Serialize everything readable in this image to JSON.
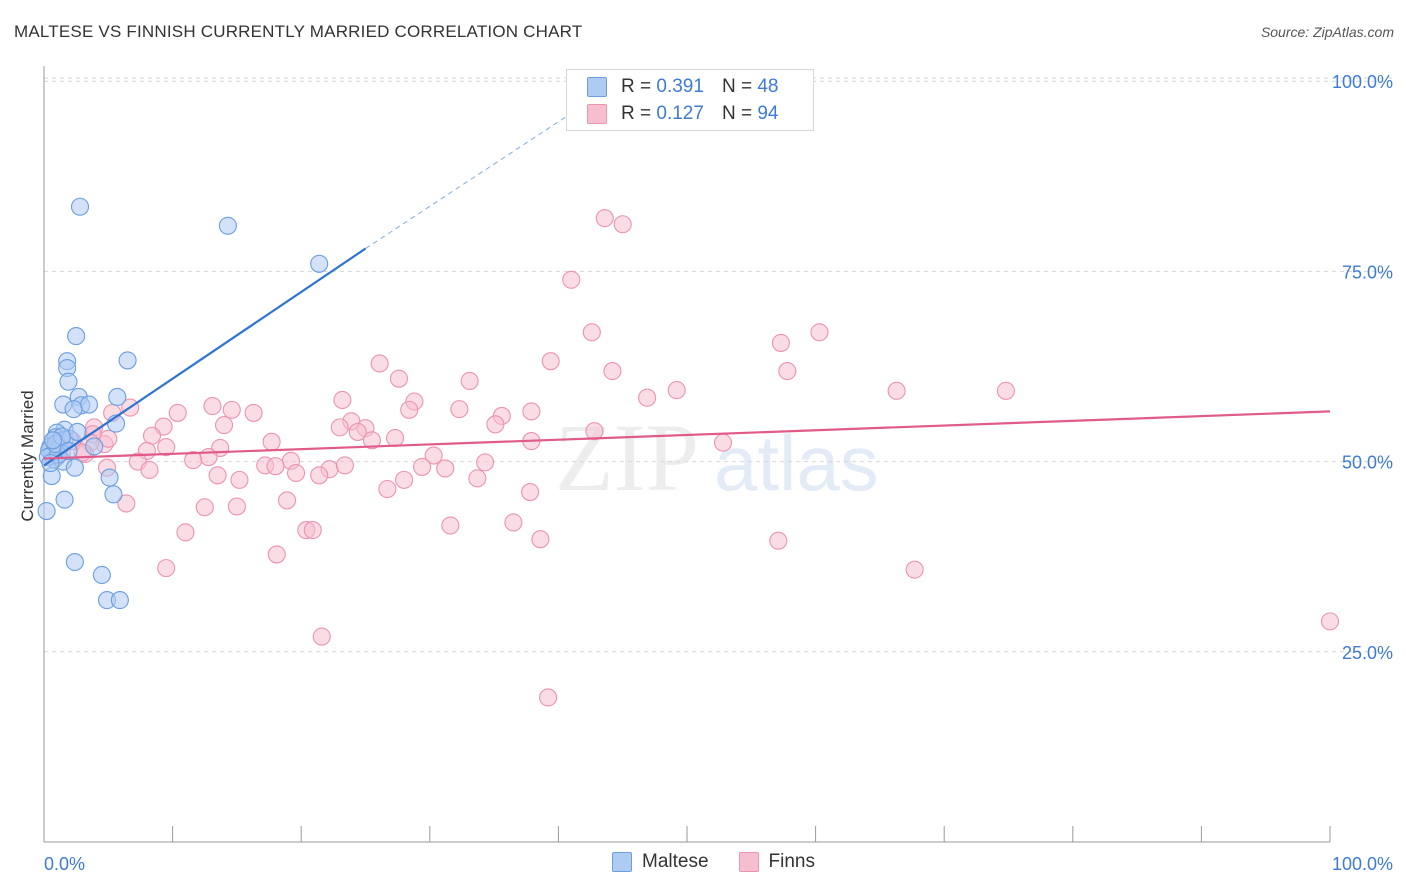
{
  "title": "MALTESE VS FINNISH CURRENTLY MARRIED CORRELATION CHART",
  "source": "Source: ZipAtlas.com",
  "watermark": {
    "zip": "ZIP",
    "atlas": "atlas"
  },
  "colors": {
    "maltese_fill": "#aecbf2",
    "maltese_stroke": "#6b9ee0",
    "maltese_line": "#2f74d0",
    "finns_fill": "#f6bfd0",
    "finns_stroke": "#ec93b0",
    "finns_line": "#e05a8a",
    "grid": "#d6d6d6",
    "axis_label": "#3d7bd6"
  },
  "legend_top": {
    "rows": [
      {
        "series": "maltese",
        "r_label": "R =",
        "r_value": "0.391",
        "n_label": "N =",
        "n_value": "48"
      },
      {
        "series": "finns",
        "r_label": "R =",
        "r_value": "0.127",
        "n_label": "N =",
        "n_value": "94"
      }
    ]
  },
  "legend_bottom": {
    "items": [
      "Maltese",
      "Finns"
    ]
  },
  "chart_data": {
    "type": "scatter",
    "title": "MALTESE VS FINNISH CURRENTLY MARRIED CORRELATION CHART",
    "xlabel": "",
    "ylabel": "Currently Married",
    "xlim": [
      0,
      100
    ],
    "ylim": [
      0,
      102
    ],
    "x_tick_labels": [
      "0.0%",
      "100.0%"
    ],
    "y_ticks": [
      25,
      50,
      75,
      100
    ],
    "y_tick_labels": [
      "25.0%",
      "50.0%",
      "75.0%",
      "100.0%"
    ],
    "grid": true,
    "legend_position": "top-center",
    "series": [
      {
        "name": "Maltese",
        "r": 0.391,
        "n": 48,
        "trend": {
          "x": [
            0,
            25
          ],
          "y": [
            49.5,
            78.0
          ],
          "dashed_to": {
            "x": 43,
            "y": 98
          }
        },
        "points": [
          [
            2.8,
            83.5
          ],
          [
            14.3,
            81.0
          ],
          [
            21.4,
            76.0
          ],
          [
            2.5,
            66.5
          ],
          [
            1.8,
            63.2
          ],
          [
            6.5,
            63.3
          ],
          [
            1.8,
            62.3
          ],
          [
            1.9,
            60.5
          ],
          [
            2.7,
            58.5
          ],
          [
            5.7,
            58.5
          ],
          [
            1.5,
            57.5
          ],
          [
            2.9,
            57.4
          ],
          [
            3.5,
            57.5
          ],
          [
            2.3,
            56.9
          ],
          [
            5.6,
            55.0
          ],
          [
            1.6,
            54.2
          ],
          [
            1.0,
            53.8
          ],
          [
            0.9,
            53.2
          ],
          [
            1.3,
            52.7
          ],
          [
            1.6,
            52.9
          ],
          [
            0.5,
            52.0
          ],
          [
            0.7,
            51.2
          ],
          [
            3.9,
            52.0
          ],
          [
            0.6,
            50.9
          ],
          [
            0.8,
            50.3
          ],
          [
            1.5,
            50.0
          ],
          [
            2.4,
            49.2
          ],
          [
            0.6,
            48.1
          ],
          [
            5.1,
            47.9
          ],
          [
            0.2,
            43.5
          ],
          [
            1.6,
            45.0
          ],
          [
            5.4,
            45.7
          ],
          [
            2.4,
            36.8
          ],
          [
            4.5,
            35.1
          ],
          [
            4.9,
            31.8
          ],
          [
            5.9,
            31.8
          ],
          [
            1.0,
            52.5
          ],
          [
            0.4,
            51.5
          ],
          [
            1.2,
            51.8
          ],
          [
            2.0,
            53.0
          ],
          [
            0.3,
            50.6
          ],
          [
            1.1,
            50.9
          ],
          [
            0.9,
            52.3
          ],
          [
            1.4,
            53.3
          ],
          [
            0.7,
            52.8
          ],
          [
            1.9,
            51.4
          ],
          [
            0.5,
            49.8
          ],
          [
            2.6,
            53.9
          ]
        ]
      },
      {
        "name": "Finns",
        "r": 0.127,
        "n": 94,
        "trend": {
          "x": [
            0,
            100
          ],
          "y": [
            50.4,
            56.6
          ]
        },
        "points": [
          [
            43.6,
            82.0
          ],
          [
            45.0,
            81.2
          ],
          [
            41.0,
            73.9
          ],
          [
            42.6,
            67.0
          ],
          [
            60.3,
            67.0
          ],
          [
            57.3,
            65.6
          ],
          [
            26.1,
            62.9
          ],
          [
            39.4,
            63.2
          ],
          [
            44.2,
            61.9
          ],
          [
            27.6,
            60.9
          ],
          [
            33.1,
            60.6
          ],
          [
            57.8,
            61.9
          ],
          [
            49.2,
            59.4
          ],
          [
            66.3,
            59.3
          ],
          [
            74.8,
            59.3
          ],
          [
            46.9,
            58.4
          ],
          [
            23.2,
            58.1
          ],
          [
            28.8,
            57.9
          ],
          [
            13.1,
            57.3
          ],
          [
            6.7,
            57.1
          ],
          [
            28.4,
            56.8
          ],
          [
            10.4,
            56.4
          ],
          [
            14.6,
            56.8
          ],
          [
            16.3,
            56.4
          ],
          [
            32.3,
            56.9
          ],
          [
            37.9,
            56.6
          ],
          [
            5.3,
            56.4
          ],
          [
            35.6,
            56.0
          ],
          [
            23.9,
            55.3
          ],
          [
            35.1,
            54.9
          ],
          [
            9.3,
            54.6
          ],
          [
            23.0,
            54.5
          ],
          [
            25.0,
            54.4
          ],
          [
            3.9,
            54.5
          ],
          [
            24.4,
            53.9
          ],
          [
            42.8,
            54.0
          ],
          [
            8.4,
            53.4
          ],
          [
            3.8,
            53.6
          ],
          [
            27.3,
            53.1
          ],
          [
            25.5,
            52.8
          ],
          [
            37.9,
            52.7
          ],
          [
            52.8,
            52.5
          ],
          [
            4.7,
            52.3
          ],
          [
            2.2,
            52.7
          ],
          [
            17.7,
            52.6
          ],
          [
            3.6,
            52.5
          ],
          [
            9.5,
            51.9
          ],
          [
            13.7,
            51.8
          ],
          [
            8.0,
            51.4
          ],
          [
            1.4,
            51.2
          ],
          [
            3.2,
            51.0
          ],
          [
            12.8,
            50.6
          ],
          [
            30.3,
            50.8
          ],
          [
            11.6,
            50.2
          ],
          [
            7.3,
            50.0
          ],
          [
            19.2,
            50.1
          ],
          [
            34.3,
            49.9
          ],
          [
            17.2,
            49.5
          ],
          [
            4.9,
            49.2
          ],
          [
            18.0,
            49.4
          ],
          [
            22.2,
            49.0
          ],
          [
            23.4,
            49.5
          ],
          [
            29.4,
            49.3
          ],
          [
            31.2,
            49.1
          ],
          [
            8.2,
            48.9
          ],
          [
            19.6,
            48.5
          ],
          [
            21.4,
            48.2
          ],
          [
            13.5,
            48.2
          ],
          [
            33.7,
            47.8
          ],
          [
            15.2,
            47.6
          ],
          [
            28.0,
            47.6
          ],
          [
            26.7,
            46.4
          ],
          [
            37.8,
            46.0
          ],
          [
            18.9,
            44.9
          ],
          [
            6.4,
            44.5
          ],
          [
            12.5,
            44.0
          ],
          [
            15.0,
            44.1
          ],
          [
            36.5,
            42.0
          ],
          [
            31.6,
            41.6
          ],
          [
            11.0,
            40.7
          ],
          [
            20.4,
            41.0
          ],
          [
            20.9,
            41.0
          ],
          [
            38.6,
            39.8
          ],
          [
            57.1,
            39.6
          ],
          [
            18.1,
            37.8
          ],
          [
            9.5,
            36.0
          ],
          [
            67.7,
            35.8
          ],
          [
            100.0,
            29.0
          ],
          [
            21.6,
            27.0
          ],
          [
            39.2,
            19.0
          ],
          [
            1.0,
            50.6
          ],
          [
            3.0,
            51.2
          ],
          [
            5.0,
            53.0
          ],
          [
            14.0,
            54.8
          ]
        ]
      }
    ]
  },
  "axis": {
    "x_left_label": "0.0%",
    "x_right_label": "100.0%"
  }
}
